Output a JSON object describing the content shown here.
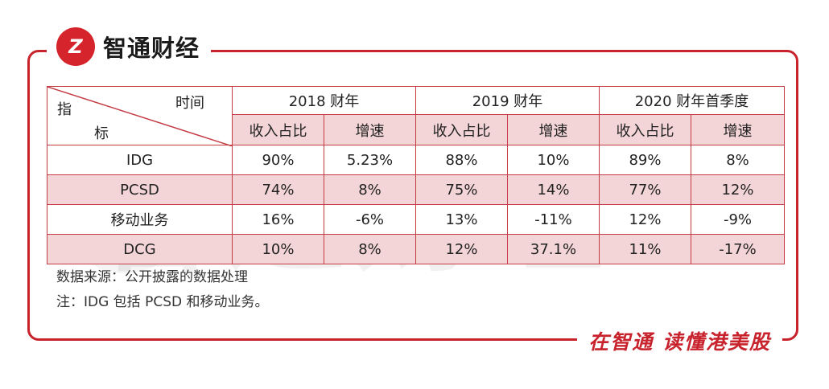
{
  "brand": {
    "logo_text": "Z",
    "name": "智通财经"
  },
  "watermark": "智通财经",
  "slogan": "在智通 读懂港美股",
  "table": {
    "corner": {
      "top": "时间",
      "left_top": "指",
      "left_bottom": "标"
    },
    "years": [
      "2018 财年",
      "2019 财年",
      "2020 财年首季度"
    ],
    "subheaders": [
      "收入占比",
      "增速",
      "收入占比",
      "增速",
      "收入占比",
      "增速"
    ],
    "rows": [
      {
        "label": "IDG",
        "values": [
          "90%",
          "5.23%",
          "88%",
          "10%",
          "89%",
          "8%"
        ]
      },
      {
        "label": "PCSD",
        "values": [
          "74%",
          "8%",
          "75%",
          "14%",
          "77%",
          "12%"
        ]
      },
      {
        "label": "移动业务",
        "values": [
          "16%",
          "-6%",
          "13%",
          "-11%",
          "12%",
          "-9%"
        ]
      },
      {
        "label": "DCG",
        "values": [
          "10%",
          "8%",
          "12%",
          "37.1%",
          "11%",
          "-17%"
        ]
      }
    ]
  },
  "notes": {
    "source": "数据来源：公开披露的数据处理",
    "note": "注：IDG 包括 PCSD 和移动业务。"
  },
  "colors": {
    "accent": "#c8232c",
    "pink_row": "#f3d5d7"
  }
}
